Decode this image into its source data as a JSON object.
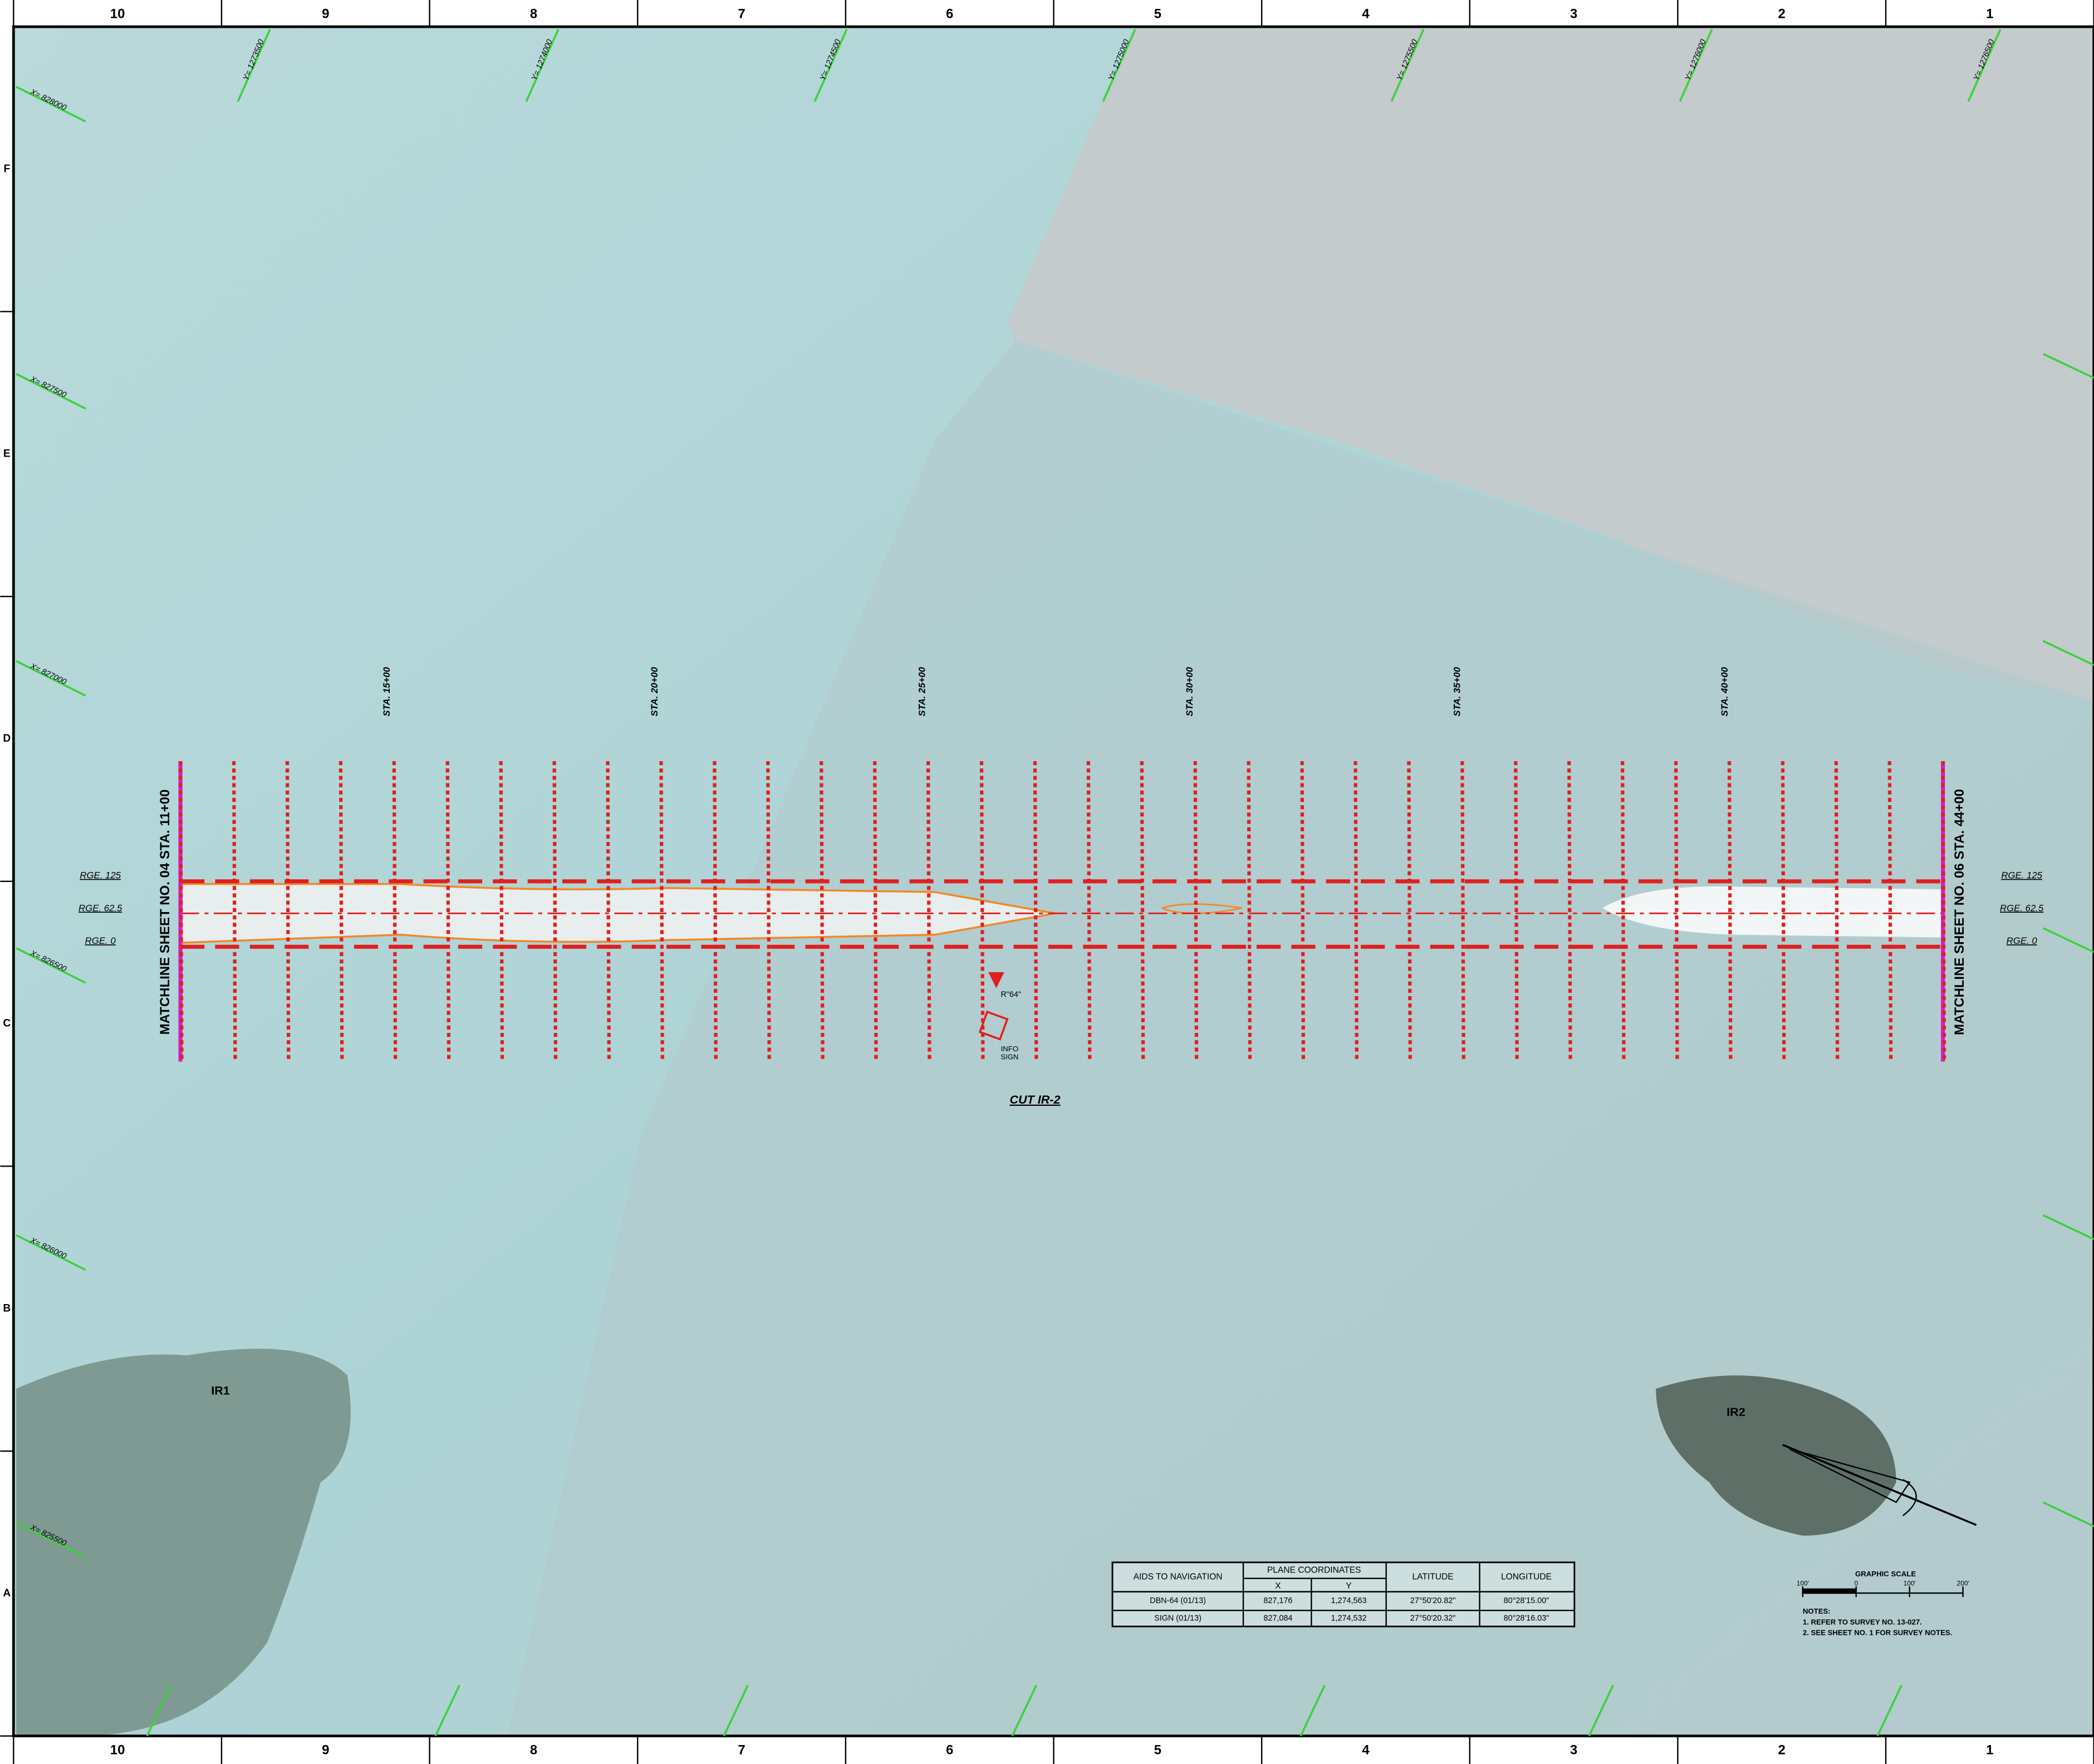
{
  "border": {
    "columns": [
      "10",
      "9",
      "8",
      "7",
      "6",
      "5",
      "4",
      "3",
      "2",
      "1"
    ],
    "rows": [
      "F",
      "E",
      "D",
      "C",
      "B",
      "A"
    ]
  },
  "grid_labels": {
    "x": [
      "X= 828000",
      "X= 827500",
      "X= 827000",
      "X= 826500",
      "X= 826000",
      "X= 825500"
    ],
    "y": [
      "Y= 1273500",
      "Y= 1274000",
      "Y= 1274500",
      "Y= 1275000",
      "Y= 1275500",
      "Y= 1276000",
      "Y= 1276500"
    ]
  },
  "stations": [
    "STA. 15+00",
    "STA. 20+00",
    "STA. 25+00",
    "STA. 30+00",
    "STA. 35+00",
    "STA. 40+00"
  ],
  "matchline": {
    "left": "MATCHLINE SHEET NO. 04 STA. 11+00",
    "right": "MATCHLINE SHEET NO. 06 STA. 44+00"
  },
  "ranges": [
    "RGE. 125",
    "RGE. 62.5",
    "RGE. 0"
  ],
  "cut_label": "CUT IR-2",
  "aids": {
    "marker": "R\"64\"",
    "sign": "INFO SIGN"
  },
  "islands": [
    "IR1",
    "IR2"
  ],
  "table": {
    "header": [
      "AIDS TO NAVIGATION",
      "PLANE COORDINATES",
      "LATITUDE",
      "LONGITUDE"
    ],
    "subheader": [
      "X",
      "Y"
    ],
    "rows": [
      [
        "DBN-64 (01/13)",
        "827,176",
        "1,274,563",
        "27°50'20.82\"",
        "80°28'15.00\""
      ],
      [
        "SIGN (01/13)",
        "827,084",
        "1,274,532",
        "27°50'20.32\"",
        "80°28'16.03\""
      ]
    ]
  },
  "scale": {
    "title": "GRAPHIC SCALE",
    "ticks": [
      "100'",
      "0",
      "100'",
      "200'"
    ]
  },
  "notes": {
    "title": "NOTES:",
    "items": [
      "1. REFER TO SURVEY NO. 13-027.",
      "2. SEE SHEET NO. 1 FOR SURVEY NOTES."
    ]
  }
}
